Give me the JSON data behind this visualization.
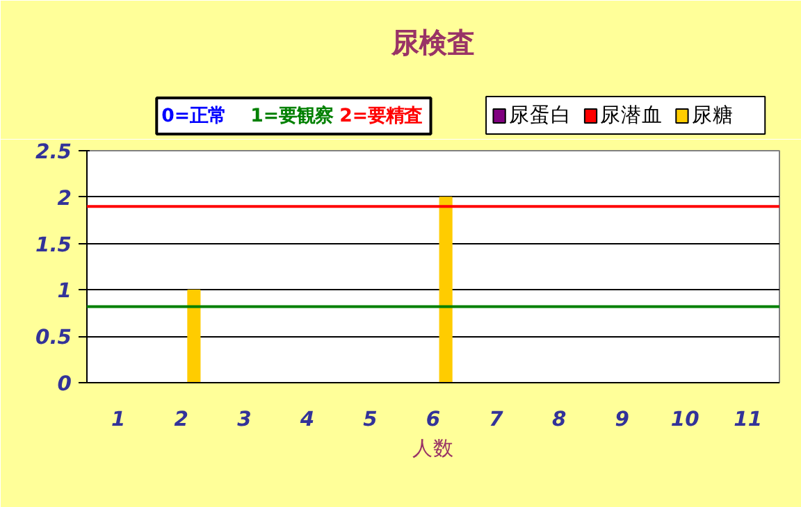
{
  "chart_data": {
    "type": "bar",
    "title": "尿検査",
    "xlabel": "人数",
    "categories": [
      "1",
      "2",
      "3",
      "4",
      "5",
      "6",
      "7",
      "8",
      "9",
      "10",
      "11"
    ],
    "series": [
      {
        "name": "尿蛋白",
        "color": "#800080",
        "values": [
          0,
          0,
          0,
          0,
          0,
          0,
          0,
          0,
          0,
          0,
          0
        ]
      },
      {
        "name": "尿潜血",
        "color": "#ff0000",
        "values": [
          0,
          0,
          0,
          0,
          0,
          0,
          0,
          0,
          0,
          0,
          0
        ]
      },
      {
        "name": "尿糖",
        "color": "#ffcc00",
        "values": [
          0,
          1,
          0,
          0,
          0,
          2,
          0,
          0,
          0,
          0,
          0
        ]
      }
    ],
    "ylim": [
      0,
      2.5
    ],
    "yticks": [
      0,
      0.5,
      1,
      1.5,
      2,
      2.5
    ],
    "grid": "y",
    "legend": "top right",
    "ref_lines": [
      {
        "axis": "y",
        "value": 1.9,
        "color": "#ff0000"
      },
      {
        "axis": "y",
        "value": 0.82,
        "color": "#008000"
      }
    ],
    "annotations": [
      "0=正常",
      "1=要観察",
      "2=要精査"
    ]
  }
}
